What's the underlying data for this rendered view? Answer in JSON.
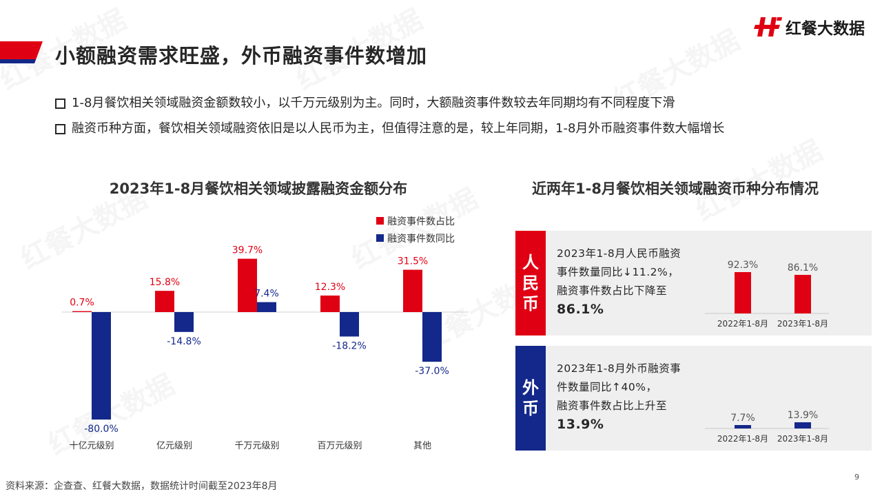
{
  "page": {
    "title": "小额融资需求旺盛，外币融资事件数增加",
    "brand": "红餐大数据",
    "watermark": "红餐大数据",
    "page_number": "9",
    "source": "资料来源：企查查、红餐大数据，数据统计时间截至2023年8月"
  },
  "bullets": [
    "1-8月餐饮相关领域融资金额数较小，以千万元级别为主。同时，大额融资事件数较去年同期均有不同程度下滑",
    "融资币种方面，餐饮相关领域融资依旧是以人民币为主，但值得注意的是，较上年同期，1-8月外币融资事件数大幅增长"
  ],
  "colors": {
    "red": "#e00013",
    "blue": "#13288a",
    "panel_bg": "#efefef"
  },
  "chart_data": [
    {
      "type": "bar",
      "title": "2023年1-8月餐饮相关领域披露融资金额分布",
      "categories": [
        "十亿元级别",
        "亿元级别",
        "千万元级别",
        "百万元级别",
        "其他"
      ],
      "series": [
        {
          "name": "融资事件数占比",
          "values": [
            0.7,
            15.8,
            39.7,
            12.3,
            31.5
          ],
          "labels": [
            "0.7%",
            "15.8%",
            "39.7%",
            "12.3%",
            "31.5%"
          ],
          "color": "#e00013"
        },
        {
          "name": "融资事件数同比",
          "values": [
            -80.0,
            -14.8,
            7.4,
            -18.2,
            -37.0
          ],
          "labels": [
            "-80.0%",
            "-14.8%",
            "7.4%",
            "-18.2%",
            "-37.0%"
          ],
          "color": "#13288a"
        }
      ],
      "legend_position": "top-right",
      "grid": false
    },
    {
      "type": "bar",
      "title": "近两年1-8月餐饮相关领域融资币种分布情况",
      "panel": "人民币",
      "band_chars": [
        "人",
        "民",
        "币"
      ],
      "text_lines": [
        "2023年1-8月人民币融资",
        "事件数量同比↓11.2%，",
        "融资事件数占比下降至"
      ],
      "highlight": "86.1%",
      "categories": [
        "2022年1-8月",
        "2023年1-8月"
      ],
      "values": [
        92.3,
        86.1
      ],
      "labels": [
        "92.3%",
        "86.1%"
      ],
      "color": "#e00013"
    },
    {
      "type": "bar",
      "panel": "外币",
      "band_chars": [
        "外",
        "币"
      ],
      "text_lines": [
        "2023年1-8月外币融资事",
        "件数量同比↑40%，",
        "融资事件数占比上升至"
      ],
      "highlight": "13.9%",
      "categories": [
        "2022年1-8月",
        "2023年1-8月"
      ],
      "values": [
        7.7,
        13.9
      ],
      "labels": [
        "7.7%",
        "13.9%"
      ],
      "color": "#13288a"
    }
  ]
}
